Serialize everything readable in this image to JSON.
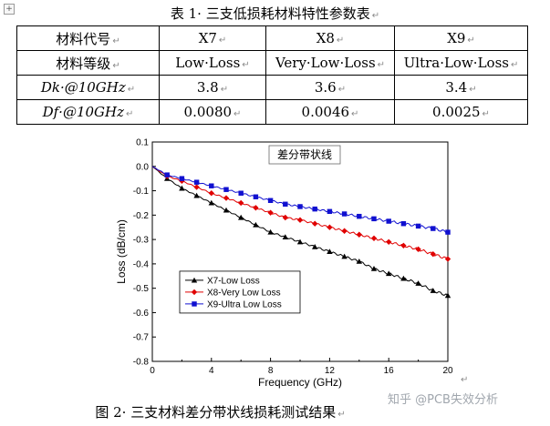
{
  "table_caption": "表 1· 三支低损耗材料特性参数表",
  "table": {
    "rows": [
      [
        "材料代号",
        "X7",
        "X8",
        "X9"
      ],
      [
        "材料等级",
        "Low·Loss",
        "Very·Low·Loss",
        "Ultra·Low·Loss"
      ],
      [
        "Dk·@10GHz",
        "3.8",
        "3.6",
        "3.4"
      ],
      [
        "Df·@10GHz",
        "0.0080",
        "0.0046",
        "0.0025"
      ]
    ],
    "end_mark": "↵"
  },
  "figure_caption": "图 2· 三支材料差分带状线损耗测试结果",
  "watermark": "知乎 @PCB失效分析",
  "chart_data": {
    "type": "line",
    "title": "差分带状线",
    "xlabel": "Frequency (GHz)",
    "ylabel": "Loss (dB/cm)",
    "xlim": [
      0,
      20
    ],
    "ylim": [
      -0.8,
      0.1
    ],
    "x_ticks": [
      "0",
      "4",
      "8",
      "12",
      "16",
      "20"
    ],
    "y_ticks": [
      "0.1",
      "0.0",
      "-0.1",
      "-0.2",
      "-0.3",
      "-0.4",
      "-0.5",
      "-0.6",
      "-0.7",
      "-0.8"
    ],
    "grid": false,
    "legend_position": "bottom-left",
    "x": [
      0,
      1,
      2,
      3,
      4,
      5,
      6,
      7,
      8,
      9,
      10,
      11,
      12,
      13,
      14,
      15,
      16,
      17,
      18,
      19,
      20
    ],
    "series": [
      {
        "name": "X7-Low Loss",
        "color": "#000000",
        "marker": "triangle",
        "values": [
          0.0,
          -0.05,
          -0.09,
          -0.12,
          -0.15,
          -0.18,
          -0.21,
          -0.24,
          -0.27,
          -0.29,
          -0.31,
          -0.33,
          -0.35,
          -0.37,
          -0.39,
          -0.42,
          -0.44,
          -0.46,
          -0.48,
          -0.51,
          -0.53
        ]
      },
      {
        "name": "X8-Very Low Loss",
        "color": "#e00000",
        "marker": "diamond",
        "values": [
          0.0,
          -0.04,
          -0.06,
          -0.085,
          -0.11,
          -0.13,
          -0.15,
          -0.17,
          -0.19,
          -0.21,
          -0.22,
          -0.235,
          -0.25,
          -0.265,
          -0.28,
          -0.295,
          -0.31,
          -0.325,
          -0.34,
          -0.36,
          -0.38
        ]
      },
      {
        "name": "X9-Ultra Low Loss",
        "color": "#1010d0",
        "marker": "square",
        "values": [
          0.0,
          -0.035,
          -0.05,
          -0.065,
          -0.08,
          -0.095,
          -0.11,
          -0.125,
          -0.14,
          -0.155,
          -0.165,
          -0.175,
          -0.185,
          -0.195,
          -0.205,
          -0.215,
          -0.225,
          -0.235,
          -0.245,
          -0.255,
          -0.27
        ]
      }
    ]
  }
}
